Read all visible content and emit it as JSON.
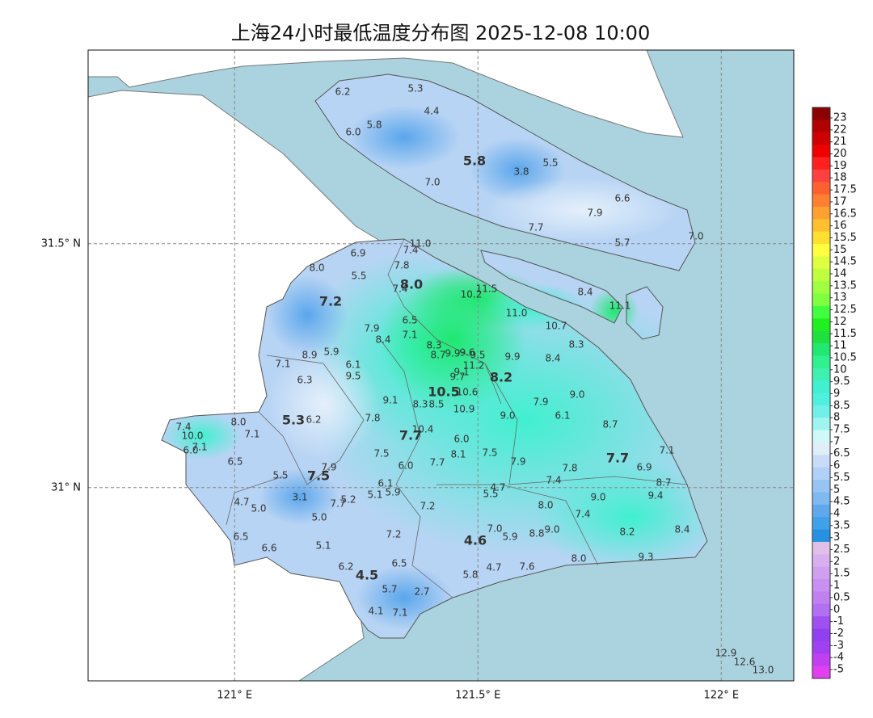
{
  "chart_data": {
    "type": "map",
    "title": "上海24小时最低温度分布图 2025-12-08 10:00",
    "xlim": [
      120.699,
      122.149
    ],
    "ylim": [
      30.604,
      31.897
    ],
    "xticks": [
      {
        "value": 121,
        "label": "121° E"
      },
      {
        "value": 121.5,
        "label": "121.5° E"
      },
      {
        "value": 122,
        "label": "122° E"
      }
    ],
    "yticks": [
      {
        "value": 31,
        "label": "31° N"
      },
      {
        "value": 31.5,
        "label": "31.5° N"
      }
    ],
    "grid": true,
    "sea_color": "#aad3df",
    "land_color": "#ffffff",
    "stations": {
      "values": [
        6.2,
        5.3,
        4.4,
        5.8,
        6.0,
        5.5,
        3.8,
        7.0,
        6.6,
        7.9,
        7.7,
        5.7,
        7.0,
        8.4,
        11.1,
        11.0,
        7.4,
        6.9,
        8.0,
        7.8,
        5.5,
        7.4,
        10.2,
        11.5,
        11.0,
        6.5,
        10.7,
        7.9,
        8.4,
        7.1,
        8.3,
        8.3,
        8.7,
        9.9,
        9.6,
        9.5,
        8.9,
        5.9,
        9.9,
        8.4,
        7.1,
        6.1,
        11.2,
        9.1,
        9.7,
        9.5,
        6.3,
        9.1,
        10.6,
        8.3,
        8.5,
        7.9,
        9.0,
        10.9,
        6.1,
        9.0,
        7.8,
        6.2,
        8.0,
        8.7,
        7.4,
        7.1,
        10.4,
        10.0,
        6.0,
        6.0,
        7.1,
        7.1,
        7.5,
        8.1,
        7.5,
        7.9,
        6.5,
        7.7,
        6.0,
        7.9,
        7.8,
        6.9,
        5.5,
        7.4,
        8.7,
        6.1,
        4.7,
        5.5,
        5.1,
        5.9,
        9.0,
        9.4,
        4.7,
        3.1,
        5.2,
        7.7,
        5.0,
        7.2,
        8.0,
        7.4,
        5.0,
        7.0,
        9.0,
        8.8,
        5.9,
        7.2,
        8.2,
        8.4,
        6.5,
        5.1,
        6.6,
        8.0,
        9.3,
        6.2,
        6.5,
        4.7,
        7.6,
        5.8,
        5.7,
        2.7,
        4.1,
        7.1,
        12.9,
        12.6,
        13.0
      ],
      "value_labels": [
        "6.2",
        "5.3",
        "4.4",
        "5.8",
        "6.0",
        "5.5",
        "3.8",
        "7.0",
        "6.6",
        "7.9",
        "7.7",
        "5.7",
        "7.0",
        "8.4",
        "11.1",
        "11.0",
        "7.4",
        "6.9",
        "8.0",
        "7.8",
        "5.5",
        "7.4",
        "10.2",
        "11.5",
        "11.0",
        "6.5",
        "10.7",
        "7.9",
        "8.4",
        "7.1",
        "8.3",
        "8.3",
        "8.7",
        "9.9",
        "9.6",
        "9.5",
        "8.9",
        "5.9",
        "9.9",
        "8.4",
        "7.1",
        "6.1",
        "11.2",
        "9.1",
        "9.7",
        "9.5",
        "6.3",
        "9.1",
        "10.6",
        "8.3",
        "8.5",
        "7.9",
        "9.0",
        "10.9",
        "6.1",
        "9.0",
        "7.8",
        "6.2",
        "8.0",
        "8.7",
        "7.4",
        "7.1",
        "10.4",
        "10.0",
        "6.0",
        "6.0",
        "7.1",
        "7.1",
        "7.5",
        "8.1",
        "7.5",
        "7.9",
        "6.5",
        "7.7",
        "6.0",
        "7.9",
        "7.8",
        "6.9",
        "5.5",
        "7.4",
        "8.7",
        "6.1",
        "4.7",
        "5.5",
        "5.1",
        "5.9",
        "9.0",
        "9.4",
        "4.7",
        "3.1",
        "5.2",
        "7.7",
        "5.0",
        "7.2",
        "8.0",
        "7.4",
        "5.0",
        "7.0",
        "9.0",
        "8.8",
        "5.9",
        "7.2",
        "8.2",
        "8.4",
        "6.5",
        "5.1",
        "6.6",
        "8.0",
        "9.3",
        "6.2",
        "6.5",
        "4.7",
        "7.6",
        "5.8",
        "5.7",
        "2.7",
        "4.1",
        "7.1",
        "12.9",
        "12.6",
        "13.0"
      ]
    },
    "districts": {
      "values": [
        5.8,
        8.0,
        7.2,
        8.2,
        10.5,
        5.3,
        7.7,
        7.5,
        7.7,
        4.6,
        4.5
      ],
      "value_labels": [
        "5.8",
        "8.0",
        "7.2",
        "8.2",
        "10.5",
        "5.3",
        "7.7",
        "7.5",
        "7.7",
        "4.6",
        "4.5"
      ]
    },
    "colorbar": {
      "ticks": [
        23,
        22,
        21,
        20,
        19,
        18,
        17.5,
        17,
        16.5,
        16,
        15.5,
        15,
        14.5,
        14,
        13.5,
        13,
        12.5,
        12,
        11.5,
        11,
        10.5,
        10,
        9.5,
        9,
        8.5,
        8,
        7.5,
        7,
        6.5,
        6,
        5.5,
        5,
        4.5,
        4,
        3.5,
        3,
        2.5,
        2,
        1.5,
        1,
        0.5,
        0,
        -1,
        -2,
        -3,
        -4,
        -5
      ],
      "colors": [
        "#8b0000",
        "#b00000",
        "#d00000",
        "#ee0000",
        "#ff2020",
        "#ff4040",
        "#ff6030",
        "#ff8030",
        "#ffa030",
        "#ffc030",
        "#ffe030",
        "#ffff40",
        "#e0ff40",
        "#c0ff40",
        "#a0ff40",
        "#80ff40",
        "#40ff40",
        "#20f020",
        "#20e040",
        "#20e870",
        "#30f090",
        "#40f0b0",
        "#40f0d0",
        "#50f0e0",
        "#70f0e8",
        "#a0f4f0",
        "#d0f8f8",
        "#e0eef8",
        "#c8dcf8",
        "#b0d0f8",
        "#98c4f4",
        "#80b8f0",
        "#60a8ec",
        "#40a0e8",
        "#2890e0",
        "#e0c0e8",
        "#d8b0f0",
        "#d0a0f0",
        "#c890f0",
        "#c080f0",
        "#b070f0",
        "#a050f0",
        "#9040f0",
        "#a040f0",
        "#c040f0",
        "#e040f0"
      ]
    }
  }
}
